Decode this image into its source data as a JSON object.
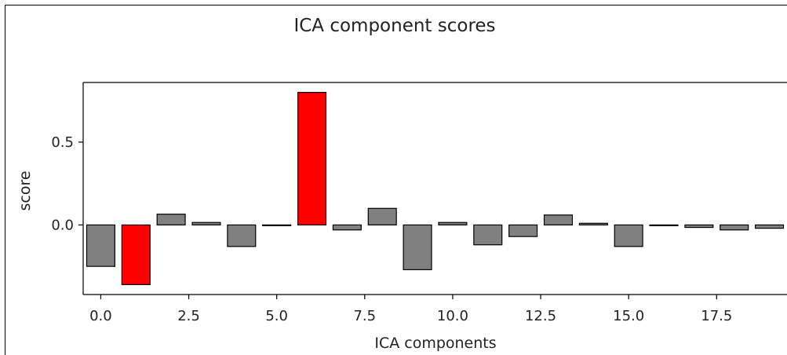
{
  "chart_data": {
    "type": "bar",
    "title": "ICA component scores",
    "xlabel": "ICA components",
    "ylabel": "score",
    "x": [
      0,
      1,
      2,
      3,
      4,
      5,
      6,
      7,
      8,
      9,
      10,
      11,
      12,
      13,
      14,
      15,
      16,
      17,
      18,
      19
    ],
    "values": [
      -0.25,
      -0.36,
      0.065,
      0.015,
      -0.13,
      0.0,
      0.8,
      -0.03,
      0.1,
      -0.27,
      0.015,
      -0.12,
      -0.07,
      0.06,
      0.01,
      -0.13,
      0.0,
      -0.015,
      -0.03,
      -0.02
    ],
    "bar_colors": [
      "#808080",
      "#ff0000",
      "#808080",
      "#808080",
      "#808080",
      "#808080",
      "#ff0000",
      "#808080",
      "#808080",
      "#808080",
      "#808080",
      "#808080",
      "#808080",
      "#808080",
      "#808080",
      "#808080",
      "#808080",
      "#808080",
      "#808080",
      "#808080"
    ],
    "xticks": [
      "0.0",
      "2.5",
      "5.0",
      "7.5",
      "10.0",
      "12.5",
      "15.0",
      "17.5"
    ],
    "yticks": [
      "0.0",
      "0.5"
    ],
    "xlim": [
      -0.5,
      19.5
    ],
    "ylim": [
      -0.42,
      0.86
    ],
    "grid": false
  }
}
